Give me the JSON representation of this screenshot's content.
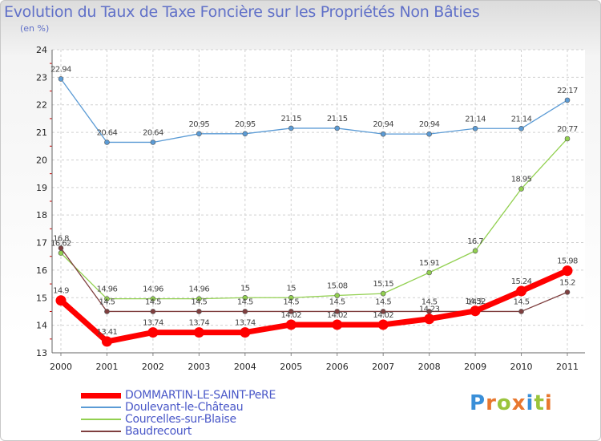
{
  "chart_data": {
    "type": "line",
    "title": "Evolution du Taux de Taxe Foncière sur les Propriétés Non Bâties",
    "subtitle": "(en %)",
    "categories": [
      "2000",
      "2001",
      "2002",
      "2003",
      "2004",
      "2005",
      "2006",
      "2007",
      "2008",
      "2009",
      "2010",
      "2011"
    ],
    "ylim": [
      13,
      24
    ],
    "yticks": [
      13,
      14,
      15,
      16,
      17,
      18,
      19,
      20,
      21,
      22,
      23,
      24
    ],
    "grid": true,
    "legend_position": "bottom-left",
    "series": [
      {
        "name": "DOMMARTIN-LE-SAINT-PeRE",
        "color": "#ff0000",
        "values": [
          14.9,
          13.41,
          13.74,
          13.74,
          13.74,
          14.02,
          14.02,
          14.02,
          14.23,
          14.52,
          15.24,
          15.98
        ],
        "labels": [
          "14.9",
          "13.41",
          "13.74",
          "13.74",
          "13.74",
          "14.02",
          "14.02",
          "14.02",
          "14.23",
          "14.52",
          "15.24",
          "15.98"
        ]
      },
      {
        "name": "Doulevant-le-Château",
        "color": "#5b9bd5",
        "values": [
          22.94,
          20.64,
          20.64,
          20.95,
          20.95,
          21.15,
          21.15,
          20.94,
          20.94,
          21.14,
          21.14,
          22.17
        ],
        "labels": [
          "22.94",
          "20.64",
          "20.64",
          "20.95",
          "20.95",
          "21.15",
          "21.15",
          "20.94",
          "20.94",
          "21.14",
          "21.14",
          "22.17"
        ]
      },
      {
        "name": "Courcelles-sur-Blaise",
        "color": "#92d050",
        "values": [
          16.62,
          14.96,
          14.96,
          14.96,
          15,
          15,
          15.08,
          15.15,
          15.91,
          16.7,
          18.95,
          20.77
        ],
        "labels": [
          "16.62",
          "14.96",
          "14.96",
          "14.96",
          "15",
          "15",
          "15.08",
          "15.15",
          "15.91",
          "16.7",
          "18.95",
          "20.77"
        ]
      },
      {
        "name": "Baudrecourt",
        "color": "#7f3f3f",
        "values": [
          16.8,
          14.5,
          14.5,
          14.5,
          14.5,
          14.5,
          14.5,
          14.5,
          14.5,
          14.5,
          14.5,
          15.2
        ],
        "labels": [
          "16.8",
          "14.5",
          "14.5",
          "14.5",
          "14.5",
          "14.5",
          "14.5",
          "14.5",
          "14.5",
          "14.5",
          "14.5",
          "15.2"
        ]
      }
    ]
  },
  "logo": {
    "letters": [
      "P",
      "r",
      "o",
      "x",
      "i",
      "t",
      "i"
    ],
    "colors": [
      "#3a8fd8",
      "#e8772e",
      "#9ac43c",
      "#e8772e",
      "#3a8fd8",
      "#9ac43c",
      "#e8772e"
    ]
  }
}
